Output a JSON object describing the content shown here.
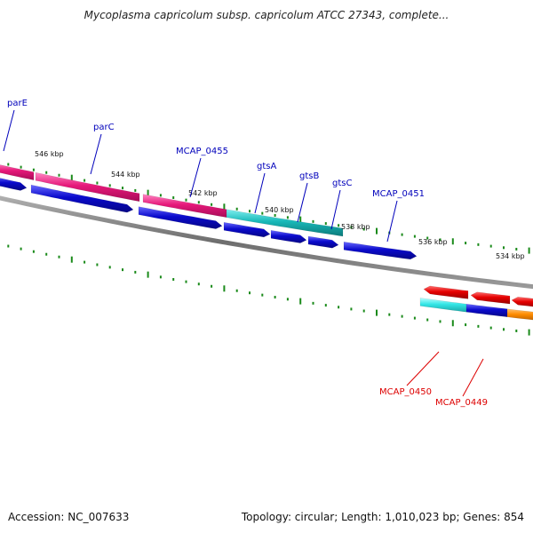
{
  "title": "Mycoplasma capricolum subsp. capricolum ATCC 27343, complete...",
  "footer": {
    "accession": "Accession: NC_007633",
    "stats": "Topology: circular; Length: 1,010,023 bp; Genes: 854"
  },
  "colors": {
    "forward_cds": "#e6197a",
    "reverse_cds": "#0a0acc",
    "teal_cds": "#18b8b8",
    "red_cds": "#e60000",
    "cyan_cds": "#33e6e6",
    "orange_cds": "#ff8c00",
    "backbone": "#7a7a7a",
    "tick": "#1a8a1a",
    "forward_label": "#0000bb",
    "reverse_label": "#dd0000"
  },
  "scale_labels": [
    "546 kbp",
    "544 kbp",
    "542 kbp",
    "540 kbp",
    "538 kbp",
    "536 kbp",
    "534 kbp"
  ],
  "genes_forward_labels": [
    "parE",
    "parC",
    "MCAP_0455",
    "gtsA",
    "gtsB",
    "gtsC",
    "MCAP_0451"
  ],
  "genes_reverse_labels": [
    "MCAP_0450",
    "MCAP_0449"
  ]
}
